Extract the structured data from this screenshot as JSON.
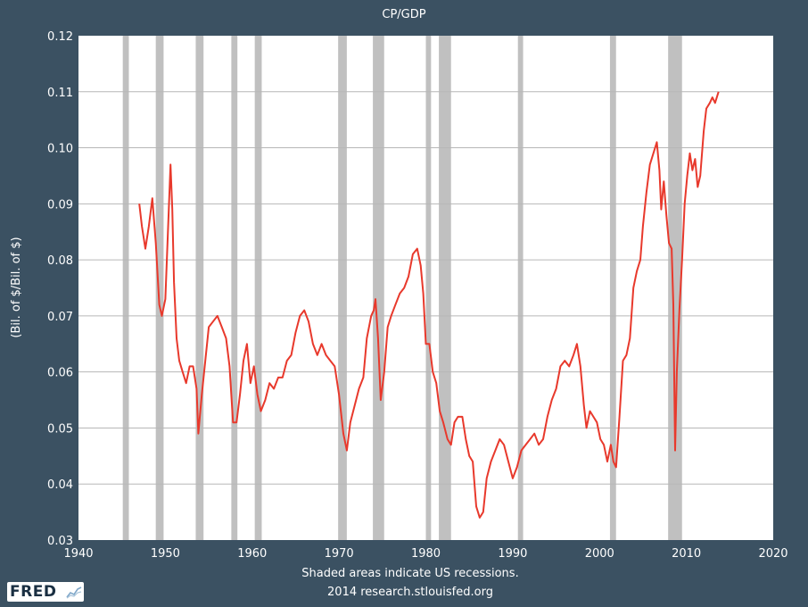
{
  "chart_data": {
    "type": "line",
    "title": "CP/GDP",
    "ylabel": "(Bil. of $/Bil. of $)",
    "xlabel": "",
    "xlim": [
      1940,
      2020
    ],
    "ylim": [
      0.03,
      0.12
    ],
    "x_ticks": [
      "1940",
      "1950",
      "1960",
      "1970",
      "1980",
      "1990",
      "2000",
      "2010",
      "2020"
    ],
    "y_ticks": [
      "0.03",
      "0.04",
      "0.05",
      "0.06",
      "0.07",
      "0.08",
      "0.09",
      "0.10",
      "0.11",
      "0.12"
    ],
    "grid": true,
    "series_color": "#e8392c",
    "recession_color": "#c0c0c0",
    "recessions": [
      [
        1945.1,
        1945.8
      ],
      [
        1948.9,
        1949.8
      ],
      [
        1953.5,
        1954.4
      ],
      [
        1957.6,
        1958.3
      ],
      [
        1960.3,
        1961.1
      ],
      [
        1969.9,
        1970.9
      ],
      [
        1973.9,
        1975.2
      ],
      [
        1980.0,
        1980.6
      ],
      [
        1981.5,
        1982.9
      ],
      [
        1990.6,
        1991.2
      ],
      [
        2001.2,
        2001.9
      ],
      [
        2007.9,
        2009.5
      ]
    ],
    "series": [
      {
        "values": [
          [
            1947.0,
            0.09
          ],
          [
            1947.3,
            0.086
          ],
          [
            1947.7,
            0.082
          ],
          [
            1948.1,
            0.086
          ],
          [
            1948.5,
            0.091
          ],
          [
            1948.9,
            0.083
          ],
          [
            1949.3,
            0.072
          ],
          [
            1949.6,
            0.07
          ],
          [
            1950.0,
            0.073
          ],
          [
            1950.3,
            0.085
          ],
          [
            1950.6,
            0.097
          ],
          [
            1950.8,
            0.089
          ],
          [
            1951.0,
            0.076
          ],
          [
            1951.3,
            0.066
          ],
          [
            1951.6,
            0.062
          ],
          [
            1952.0,
            0.06
          ],
          [
            1952.4,
            0.058
          ],
          [
            1952.8,
            0.061
          ],
          [
            1953.2,
            0.061
          ],
          [
            1953.6,
            0.057
          ],
          [
            1953.8,
            0.049
          ],
          [
            1954.2,
            0.056
          ],
          [
            1954.6,
            0.062
          ],
          [
            1955.0,
            0.068
          ],
          [
            1955.5,
            0.069
          ],
          [
            1956.0,
            0.07
          ],
          [
            1956.5,
            0.068
          ],
          [
            1957.0,
            0.066
          ],
          [
            1957.4,
            0.061
          ],
          [
            1957.8,
            0.051
          ],
          [
            1958.2,
            0.051
          ],
          [
            1958.6,
            0.056
          ],
          [
            1959.0,
            0.062
          ],
          [
            1959.4,
            0.065
          ],
          [
            1959.8,
            0.058
          ],
          [
            1960.2,
            0.061
          ],
          [
            1960.6,
            0.056
          ],
          [
            1961.0,
            0.053
          ],
          [
            1961.5,
            0.055
          ],
          [
            1962.0,
            0.058
          ],
          [
            1962.5,
            0.057
          ],
          [
            1963.0,
            0.059
          ],
          [
            1963.5,
            0.059
          ],
          [
            1964.0,
            0.062
          ],
          [
            1964.5,
            0.063
          ],
          [
            1965.0,
            0.067
          ],
          [
            1965.5,
            0.07
          ],
          [
            1966.0,
            0.071
          ],
          [
            1966.5,
            0.069
          ],
          [
            1967.0,
            0.065
          ],
          [
            1967.5,
            0.063
          ],
          [
            1968.0,
            0.065
          ],
          [
            1968.5,
            0.063
          ],
          [
            1969.0,
            0.062
          ],
          [
            1969.5,
            0.061
          ],
          [
            1970.0,
            0.056
          ],
          [
            1970.5,
            0.049
          ],
          [
            1970.9,
            0.046
          ],
          [
            1971.3,
            0.051
          ],
          [
            1971.8,
            0.054
          ],
          [
            1972.3,
            0.057
          ],
          [
            1972.8,
            0.059
          ],
          [
            1973.2,
            0.066
          ],
          [
            1973.7,
            0.07
          ],
          [
            1974.0,
            0.071
          ],
          [
            1974.2,
            0.073
          ],
          [
            1974.5,
            0.066
          ],
          [
            1974.8,
            0.055
          ],
          [
            1975.2,
            0.06
          ],
          [
            1975.6,
            0.068
          ],
          [
            1976.0,
            0.07
          ],
          [
            1976.5,
            0.072
          ],
          [
            1977.0,
            0.074
          ],
          [
            1977.5,
            0.075
          ],
          [
            1978.0,
            0.077
          ],
          [
            1978.5,
            0.081
          ],
          [
            1979.0,
            0.082
          ],
          [
            1979.4,
            0.079
          ],
          [
            1979.7,
            0.074
          ],
          [
            1980.0,
            0.065
          ],
          [
            1980.4,
            0.065
          ],
          [
            1980.8,
            0.06
          ],
          [
            1981.2,
            0.058
          ],
          [
            1981.6,
            0.053
          ],
          [
            1982.0,
            0.051
          ],
          [
            1982.5,
            0.048
          ],
          [
            1982.9,
            0.047
          ],
          [
            1983.3,
            0.051
          ],
          [
            1983.7,
            0.052
          ],
          [
            1984.2,
            0.052
          ],
          [
            1984.6,
            0.048
          ],
          [
            1985.0,
            0.045
          ],
          [
            1985.4,
            0.044
          ],
          [
            1985.8,
            0.036
          ],
          [
            1986.2,
            0.034
          ],
          [
            1986.6,
            0.035
          ],
          [
            1987.0,
            0.041
          ],
          [
            1987.5,
            0.044
          ],
          [
            1988.0,
            0.046
          ],
          [
            1988.5,
            0.048
          ],
          [
            1989.0,
            0.047
          ],
          [
            1989.5,
            0.044
          ],
          [
            1990.0,
            0.041
          ],
          [
            1990.5,
            0.043
          ],
          [
            1991.0,
            0.046
          ],
          [
            1991.5,
            0.047
          ],
          [
            1992.0,
            0.048
          ],
          [
            1992.5,
            0.049
          ],
          [
            1993.0,
            0.047
          ],
          [
            1993.5,
            0.048
          ],
          [
            1994.0,
            0.052
          ],
          [
            1994.5,
            0.055
          ],
          [
            1995.0,
            0.057
          ],
          [
            1995.5,
            0.061
          ],
          [
            1996.0,
            0.062
          ],
          [
            1996.5,
            0.061
          ],
          [
            1997.0,
            0.063
          ],
          [
            1997.4,
            0.065
          ],
          [
            1997.8,
            0.061
          ],
          [
            1998.2,
            0.054
          ],
          [
            1998.5,
            0.05
          ],
          [
            1998.9,
            0.053
          ],
          [
            1999.3,
            0.052
          ],
          [
            1999.7,
            0.051
          ],
          [
            2000.1,
            0.048
          ],
          [
            2000.5,
            0.047
          ],
          [
            2000.9,
            0.044
          ],
          [
            2001.3,
            0.047
          ],
          [
            2001.6,
            0.044
          ],
          [
            2001.9,
            0.043
          ],
          [
            2002.3,
            0.052
          ],
          [
            2002.7,
            0.062
          ],
          [
            2003.1,
            0.063
          ],
          [
            2003.5,
            0.066
          ],
          [
            2003.9,
            0.075
          ],
          [
            2004.3,
            0.078
          ],
          [
            2004.7,
            0.08
          ],
          [
            2005.0,
            0.086
          ],
          [
            2005.4,
            0.092
          ],
          [
            2005.8,
            0.097
          ],
          [
            2006.2,
            0.099
          ],
          [
            2006.6,
            0.101
          ],
          [
            2006.9,
            0.096
          ],
          [
            2007.1,
            0.089
          ],
          [
            2007.4,
            0.094
          ],
          [
            2007.7,
            0.088
          ],
          [
            2008.0,
            0.083
          ],
          [
            2008.3,
            0.082
          ],
          [
            2008.5,
            0.072
          ],
          [
            2008.7,
            0.046
          ],
          [
            2008.9,
            0.06
          ],
          [
            2009.2,
            0.071
          ],
          [
            2009.5,
            0.08
          ],
          [
            2009.8,
            0.09
          ],
          [
            2010.1,
            0.095
          ],
          [
            2010.4,
            0.099
          ],
          [
            2010.7,
            0.096
          ],
          [
            2011.0,
            0.098
          ],
          [
            2011.3,
            0.093
          ],
          [
            2011.6,
            0.095
          ],
          [
            2012.0,
            0.103
          ],
          [
            2012.3,
            0.107
          ],
          [
            2012.7,
            0.108
          ],
          [
            2013.0,
            0.109
          ],
          [
            2013.3,
            0.108
          ],
          [
            2013.7,
            0.11
          ]
        ]
      }
    ]
  },
  "notes": {
    "recessions_note": "Shaded areas indicate US recessions.",
    "source": "2014 research.stlouisfed.org"
  },
  "logo": {
    "text": "FRED"
  }
}
